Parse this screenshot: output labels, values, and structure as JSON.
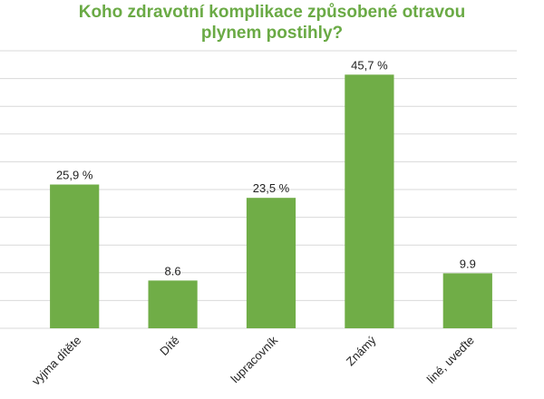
{
  "chart_data": {
    "type": "bar",
    "title": "Koho zdravotní komplikace způsobené otravou plynem postihly?",
    "categories": [
      "vyjma dítěte",
      "Dítě",
      "lupracovník",
      "Známý",
      "liné, uveďte"
    ],
    "values": [
      25.9,
      8.6,
      23.5,
      45.7,
      9.9
    ],
    "value_labels": [
      "25,9  %",
      "8.6",
      "23,5 %",
      "45,7 %",
      "9.9"
    ],
    "color": "#70ad47",
    "ylim": [
      0,
      50
    ],
    "yticks": [
      0,
      5,
      10,
      15,
      20,
      25,
      30,
      35,
      40,
      45,
      50
    ],
    "grid": true
  }
}
